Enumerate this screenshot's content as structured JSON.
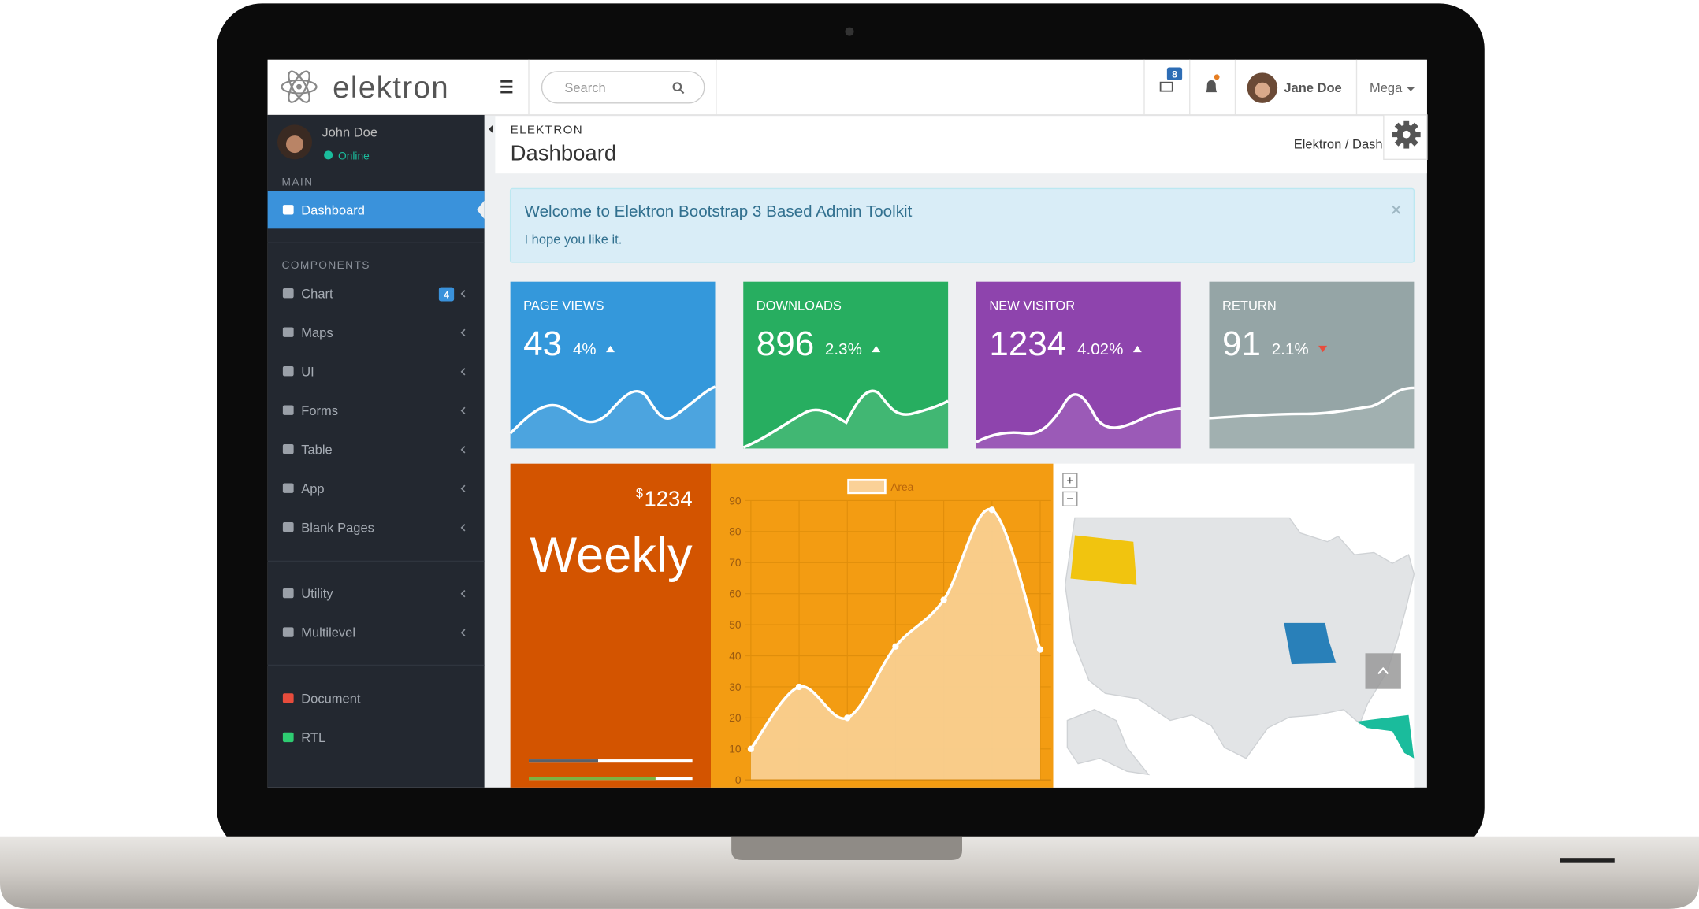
{
  "header": {
    "brand": "elektron",
    "search_placeholder": "Search",
    "mail_badge": "8",
    "user": "Jane Doe",
    "mega": "Mega"
  },
  "sidebar": {
    "user": "John Doe",
    "status": "Online",
    "main_label": "MAIN",
    "components_label": "COMPONENTS",
    "items": [
      {
        "label": "Dashboard"
      },
      {
        "label": "Chart",
        "badge": "4"
      },
      {
        "label": "Maps"
      },
      {
        "label": "UI"
      },
      {
        "label": "Forms"
      },
      {
        "label": "Table"
      },
      {
        "label": "App"
      },
      {
        "label": "Blank Pages"
      },
      {
        "label": "Utility"
      },
      {
        "label": "Multilevel"
      },
      {
        "label": "Document"
      },
      {
        "label": "RTL"
      }
    ]
  },
  "page_header": {
    "eyebrow": "ELEKTRON",
    "title": "Dashboard",
    "breadcrumb": "Elektron / Dashboard"
  },
  "alert": {
    "title": "Welcome to Elektron Bootstrap 3 Based Admin Toolkit",
    "text": "I hope you like it."
  },
  "stats": [
    {
      "label": "PAGE VIEWS",
      "value": "43",
      "change": "4%",
      "trend": "up",
      "color": "#3498db"
    },
    {
      "label": "DOWNLOADS",
      "value": "896",
      "change": "2.3%",
      "trend": "up",
      "color": "#27ae60"
    },
    {
      "label": "NEW VISITOR",
      "value": "1234",
      "change": "4.02%",
      "trend": "up",
      "color": "#8e44ad"
    },
    {
      "label": "RETURN",
      "value": "91",
      "change": "2.1%",
      "trend": "down",
      "color": "#95a5a6"
    }
  ],
  "weekly": {
    "currency": "$",
    "amount": "1234",
    "label": "Weekly"
  },
  "chart": {
    "type": "area",
    "legend": "Area",
    "color": "#fad197",
    "values": [
      10,
      30,
      20,
      43,
      58,
      87,
      42
    ],
    "ylim": [
      0,
      90
    ],
    "yticks": [
      0,
      10,
      20,
      30,
      40,
      50,
      60,
      70,
      80,
      90
    ],
    "grid": true
  },
  "map": {
    "zoom_in": "+",
    "zoom_out": "−"
  }
}
